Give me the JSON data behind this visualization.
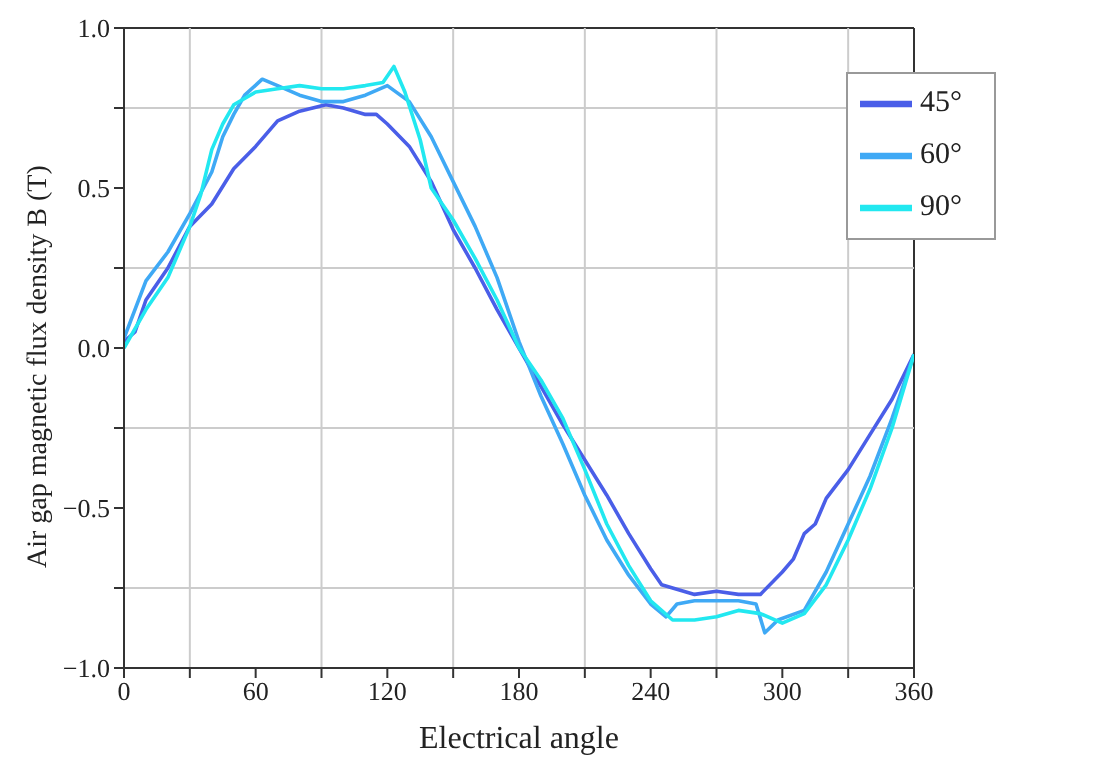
{
  "chart_data": {
    "type": "line",
    "xlabel": "Electrical angle",
    "ylabel": "Air gap magnetic flux density B (T)",
    "xlim": [
      0,
      360
    ],
    "xticks": [
      0,
      {
        "value": 30,
        "label": null
      },
      60,
      {
        "value": 90,
        "label": null
      },
      120,
      {
        "value": 150,
        "label": null
      },
      180,
      {
        "value": 210,
        "label": null
      },
      240,
      {
        "value": 270,
        "label": null
      },
      300,
      {
        "value": 330,
        "label": null
      },
      360
    ],
    "ylim": [
      -1.0,
      1.0
    ],
    "yticks": [
      {
        "value": -1.0,
        "label": "−1.0"
      },
      {
        "value": -0.75,
        "label": null
      },
      {
        "value": -0.5,
        "label": "−0.5"
      },
      {
        "value": -0.25,
        "label": null
      },
      {
        "value": 0,
        "label": "0.0"
      },
      {
        "value": 0.25,
        "label": null
      },
      {
        "value": 0.5,
        "label": "0.5"
      },
      {
        "value": 0.75,
        "label": null
      },
      {
        "value": 1.0,
        "label": "1.0"
      }
    ],
    "grid": true,
    "legend": "top right",
    "marker": "none",
    "line_style": "solid",
    "series": [
      {
        "name": "45°",
        "color": "#4a5ee8",
        "x": [
          0,
          5,
          10,
          20,
          30,
          40,
          50,
          60,
          70,
          80,
          92,
          100,
          110,
          115,
          120,
          130,
          140,
          150,
          160,
          170,
          180,
          190,
          200,
          210,
          220,
          230,
          240,
          245,
          255,
          260,
          270,
          280,
          290,
          300,
          305,
          310,
          315,
          320,
          330,
          340,
          350,
          360
        ],
        "values": [
          0.02,
          0.05,
          0.15,
          0.25,
          0.38,
          0.45,
          0.56,
          0.63,
          0.71,
          0.74,
          0.76,
          0.75,
          0.73,
          0.73,
          0.7,
          0.63,
          0.52,
          0.37,
          0.25,
          0.12,
          0.0,
          -0.12,
          -0.24,
          -0.35,
          -0.46,
          -0.58,
          -0.69,
          -0.74,
          -0.76,
          -0.77,
          -0.76,
          -0.77,
          -0.77,
          -0.7,
          -0.66,
          -0.58,
          -0.55,
          -0.47,
          -0.38,
          -0.27,
          -0.16,
          -0.02
        ]
      },
      {
        "name": "60°",
        "color": "#3fa9f5",
        "x": [
          0,
          5,
          10,
          20,
          30,
          40,
          45,
          50,
          55,
          63,
          70,
          80,
          90,
          100,
          110,
          120,
          130,
          140,
          150,
          160,
          170,
          180,
          190,
          200,
          210,
          220,
          230,
          240,
          247,
          252,
          260,
          280,
          288,
          292,
          298,
          310,
          320,
          330,
          340,
          350,
          360
        ],
        "values": [
          0.03,
          0.12,
          0.21,
          0.3,
          0.42,
          0.55,
          0.66,
          0.73,
          0.79,
          0.84,
          0.82,
          0.79,
          0.77,
          0.77,
          0.79,
          0.82,
          0.77,
          0.66,
          0.52,
          0.38,
          0.22,
          0.02,
          -0.15,
          -0.3,
          -0.46,
          -0.6,
          -0.71,
          -0.8,
          -0.84,
          -0.8,
          -0.79,
          -0.79,
          -0.8,
          -0.89,
          -0.85,
          -0.82,
          -0.7,
          -0.55,
          -0.4,
          -0.22,
          -0.02
        ]
      },
      {
        "name": "90°",
        "color": "#22e8f0",
        "x": [
          0,
          10,
          20,
          30,
          35,
          40,
          45,
          50,
          60,
          70,
          80,
          90,
          100,
          110,
          118,
          123,
          128,
          135,
          140,
          150,
          160,
          170,
          180,
          190,
          200,
          210,
          220,
          230,
          240,
          250,
          260,
          270,
          280,
          290,
          300,
          310,
          320,
          330,
          340,
          350,
          360
        ],
        "values": [
          0.0,
          0.12,
          0.22,
          0.38,
          0.48,
          0.62,
          0.7,
          0.76,
          0.8,
          0.81,
          0.82,
          0.81,
          0.81,
          0.82,
          0.83,
          0.88,
          0.8,
          0.65,
          0.5,
          0.4,
          0.28,
          0.15,
          0.0,
          -0.1,
          -0.22,
          -0.38,
          -0.55,
          -0.68,
          -0.79,
          -0.85,
          -0.85,
          -0.84,
          -0.82,
          -0.83,
          -0.86,
          -0.83,
          -0.74,
          -0.6,
          -0.44,
          -0.25,
          -0.02
        ]
      }
    ]
  }
}
